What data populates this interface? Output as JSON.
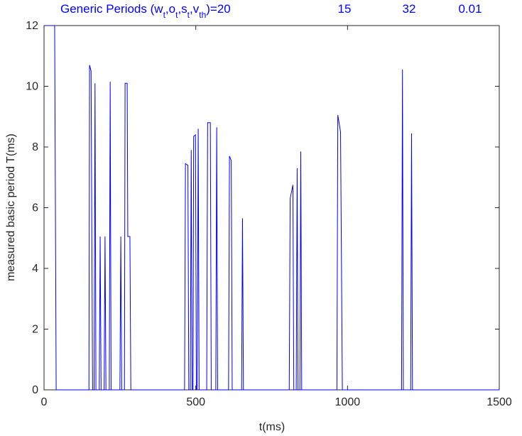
{
  "chart_data": {
    "type": "line",
    "title": {
      "parts": [
        "Generic Periods (w",
        "t",
        ",o",
        "t",
        ",s",
        "t",
        ",v",
        "th",
        ")=20"
      ],
      "values": [
        "15",
        "32",
        "0.01"
      ]
    },
    "xlabel": "t(ms)",
    "ylabel": "measured basic period T(ms)",
    "xlim": [
      0,
      1500
    ],
    "xticks": [
      0,
      500,
      1000,
      1500
    ],
    "ylim": [
      0,
      12
    ],
    "yticks": [
      0,
      2,
      4,
      6,
      8,
      10,
      12
    ],
    "series": [
      {
        "color": "#0000ff",
        "x": [
          0,
          35,
          40,
          148,
          150,
          155,
          160,
          165,
          168,
          171,
          182,
          185,
          188,
          198,
          201,
          204,
          215,
          218,
          221,
          250,
          253,
          256,
          265,
          267,
          274,
          276,
          283,
          286,
          463,
          466,
          474,
          477,
          482,
          485,
          488,
          491,
          493,
          499,
          502,
          505,
          508,
          511,
          536,
          539,
          548,
          551,
          566,
          569,
          572,
          608,
          611,
          617,
          620,
          651,
          654,
          657,
          808,
          811,
          820,
          823,
          831,
          834,
          837,
          843,
          846,
          849,
          965,
          968,
          977,
          983,
          1178,
          1181,
          1184,
          1208,
          1211,
          1214,
          1500
        ],
        "values": [
          12,
          12,
          0,
          0,
          10.7,
          10.5,
          0,
          0,
          10.1,
          0,
          0,
          5.05,
          0,
          0,
          5.05,
          0,
          0,
          10.15,
          0,
          0,
          5.05,
          0,
          0,
          10.1,
          10.1,
          5.05,
          5.05,
          0,
          0,
          7.45,
          7.4,
          0,
          0,
          7.9,
          0,
          0,
          8.35,
          8.4,
          0,
          0,
          8.6,
          0,
          0,
          8.8,
          8.8,
          0,
          0,
          8.65,
          0,
          0,
          7.7,
          7.55,
          0,
          0,
          5.65,
          0,
          0,
          6.3,
          6.75,
          0,
          0,
          7.3,
          0,
          0,
          7.85,
          0,
          0,
          9.05,
          8.5,
          0,
          0,
          10.55,
          0,
          0,
          8.45,
          0,
          0
        ]
      }
    ]
  }
}
